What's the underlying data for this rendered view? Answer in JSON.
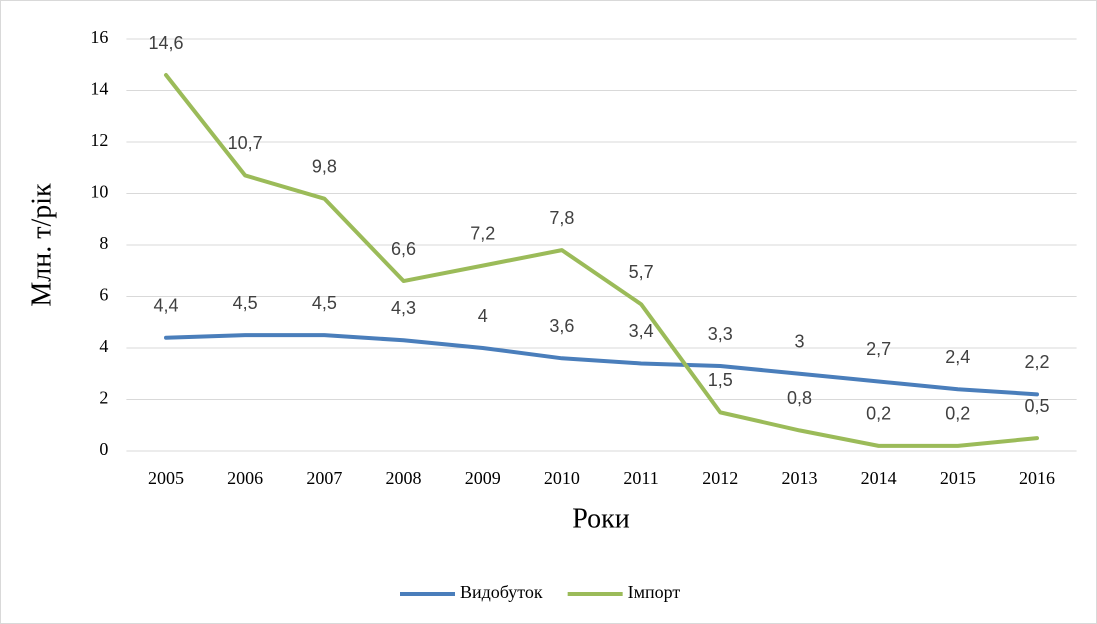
{
  "chart_data": {
    "type": "line",
    "x_label": "Роки",
    "y_label": "Млн. т/рік",
    "categories": [
      "2005",
      "2006",
      "2007",
      "2008",
      "2009",
      "2010",
      "2011",
      "2012",
      "2013",
      "2014",
      "2015",
      "2016"
    ],
    "series": [
      {
        "name": "Видобуток",
        "color": "#4a7ebb",
        "values": [
          4.4,
          4.5,
          4.5,
          4.3,
          4,
          3.6,
          3.4,
          3.3,
          3,
          2.7,
          2.4,
          2.2
        ],
        "value_labels": [
          "4,4",
          "4,5",
          "4,5",
          "4,3",
          "4",
          "3,6",
          "3,4",
          "3,3",
          "3",
          "2,7",
          "2,4",
          "2,2"
        ]
      },
      {
        "name": "Імпорт",
        "color": "#9bbb59",
        "values": [
          14.6,
          10.7,
          9.8,
          6.6,
          7.2,
          7.8,
          5.7,
          1.5,
          0.8,
          0.2,
          0.2,
          0.5
        ],
        "value_labels": [
          "14,6",
          "10,7",
          "9,8",
          "6,6",
          "7,2",
          "7,8",
          "5,7",
          "1,5",
          "0,8",
          "0,2",
          "0,2",
          "0,5"
        ]
      }
    ],
    "ylim": [
      0,
      16
    ],
    "yticks": [
      0,
      2,
      4,
      6,
      8,
      10,
      12,
      14,
      16
    ],
    "grid": true,
    "legend": "bottom"
  }
}
